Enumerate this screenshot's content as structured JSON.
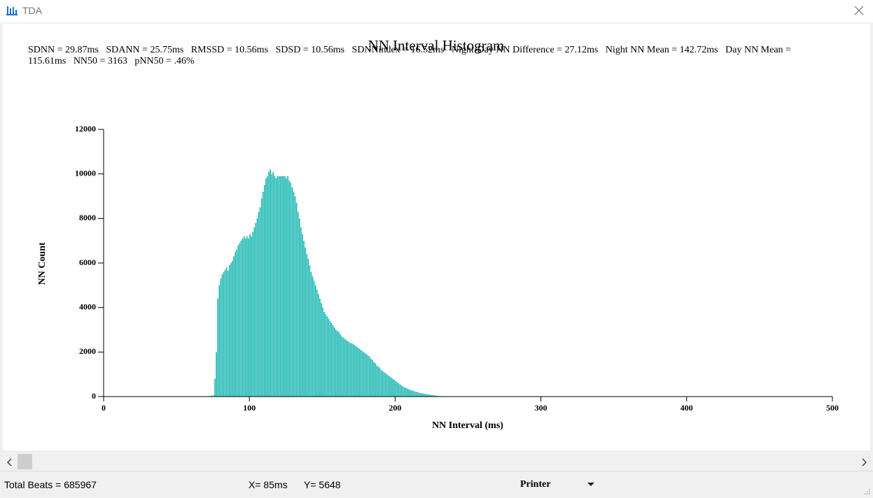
{
  "window_title": "TDA",
  "chart_data": {
    "type": "histogram",
    "title": "NN Interval Histogram",
    "stats_text": "SDNN = 29.87ms   SDANN = 25.75ms   RMSSD = 10.56ms   SDSD = 10.56ms   SDNNindex = 16.52ms   Night-Day NN Difference = 27.12ms   Night NN Mean = 142.72ms   Day NN Mean = 115.61ms   NN50 = 3163   pNN50 = .46%",
    "xlabel": "NN Interval (ms)",
    "ylabel": "NN Count",
    "color": "#1db8b3",
    "bins": [
      72,
      73,
      74,
      75,
      76,
      77,
      78,
      79,
      80,
      81,
      82,
      83,
      84,
      85,
      86,
      87,
      88,
      89,
      90,
      91,
      92,
      93,
      94,
      95,
      96,
      97,
      98,
      99,
      100,
      101,
      102,
      103,
      104,
      105,
      106,
      107,
      108,
      109,
      110,
      111,
      112,
      113,
      114,
      115,
      116,
      117,
      118,
      119,
      120,
      121,
      122,
      123,
      124,
      125,
      126,
      127,
      128,
      129,
      130,
      131,
      132,
      133,
      134,
      135,
      136,
      137,
      138,
      139,
      140,
      141,
      142,
      143,
      144,
      145,
      146,
      147,
      148,
      149,
      150,
      151,
      152,
      153,
      154,
      155,
      156,
      157,
      158,
      159,
      160,
      161,
      162,
      163,
      164,
      165,
      166,
      167,
      168,
      169,
      170,
      171,
      172,
      173,
      174,
      175,
      176,
      177,
      178,
      179,
      180,
      181,
      182,
      183,
      184,
      185,
      186,
      187,
      188,
      189,
      190,
      191,
      192,
      193,
      194,
      195,
      196,
      197,
      198,
      199,
      200,
      201,
      202,
      203,
      204,
      205,
      206,
      207,
      208,
      209,
      210,
      211,
      212,
      213,
      214,
      215,
      216,
      217,
      218,
      219,
      220,
      221,
      222,
      223,
      224,
      225,
      226,
      227,
      228,
      229,
      230,
      231,
      232
    ],
    "counts": [
      20,
      30,
      40,
      60,
      800,
      2000,
      4400,
      5000,
      5300,
      5500,
      5600,
      5700,
      5800,
      5648,
      5900,
      6000,
      6100,
      6300,
      6500,
      6600,
      6800,
      6900,
      7000,
      7100,
      7200,
      7100,
      7200,
      7100,
      7300,
      7200,
      7400,
      7600,
      7800,
      8000,
      8300,
      8500,
      8900,
      9200,
      9500,
      9800,
      9900,
      10100,
      10200,
      10000,
      10100,
      9900,
      9800,
      9900,
      9900,
      9900,
      9900,
      9900,
      9900,
      9800,
      9900,
      9700,
      9600,
      9400,
      9200,
      9000,
      8700,
      8300,
      8000,
      7600,
      7300,
      7000,
      6700,
      6400,
      6200,
      5900,
      5600,
      5400,
      5200,
      5000,
      4800,
      4600,
      4400,
      4200,
      4000,
      3800,
      3700,
      3600,
      3500,
      3400,
      3300,
      3200,
      3100,
      3000,
      2950,
      2900,
      2800,
      2700,
      2650,
      2600,
      2550,
      2500,
      2450,
      2400,
      2400,
      2350,
      2300,
      2250,
      2200,
      2150,
      2100,
      2050,
      2000,
      1950,
      1900,
      1850,
      1800,
      1700,
      1650,
      1550,
      1500,
      1400,
      1350,
      1300,
      1200,
      1150,
      1100,
      1050,
      1000,
      950,
      900,
      850,
      800,
      750,
      700,
      650,
      600,
      550,
      500,
      450,
      420,
      390,
      360,
      330,
      300,
      280,
      260,
      240,
      220,
      200,
      180,
      160,
      150,
      140,
      120,
      110,
      100,
      90,
      80,
      70,
      60,
      50,
      40,
      30,
      20,
      20
    ],
    "xlim": [
      0,
      500
    ],
    "xticks": [
      0,
      100,
      200,
      300,
      400,
      500
    ],
    "ylim": [
      0,
      12000
    ],
    "yticks": [
      0,
      2000,
      4000,
      6000,
      8000,
      10000,
      12000
    ]
  },
  "status": {
    "total_beats": "Total Beats = 685967",
    "cursor_x": "X= 85ms",
    "cursor_y": "Y= 5648",
    "output": "Printer"
  }
}
